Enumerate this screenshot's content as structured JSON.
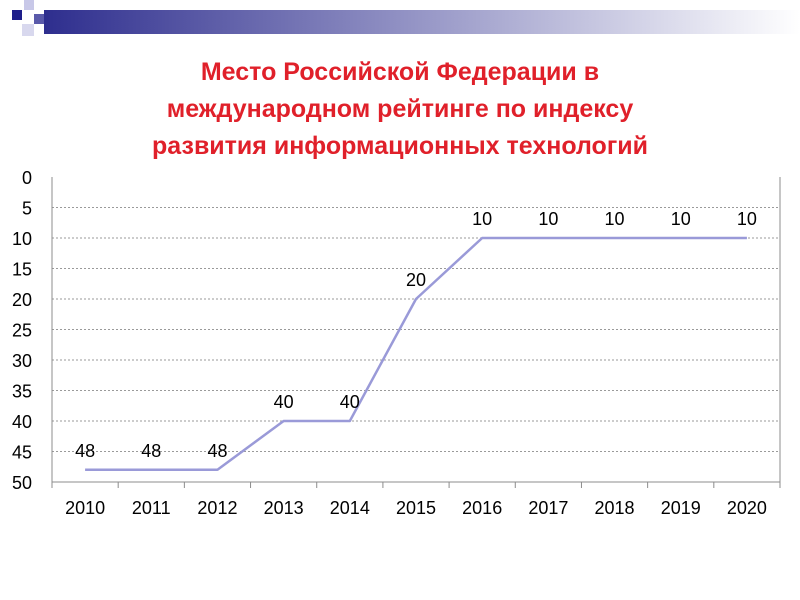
{
  "colors": {
    "title": "#e0202a",
    "line": "#9a9ad8",
    "grid": "#9a9a9a",
    "banner_dark": "#2e2e8e",
    "banner_light": "#ffffff"
  },
  "chart_data": {
    "type": "line",
    "title_lines": [
      "Место Российской Федерации в",
      "международном рейтинге по индексу",
      "развития информационных технологий"
    ],
    "xlabel": "",
    "ylabel": "",
    "x": [
      "2010",
      "2011",
      "2012",
      "2013",
      "2014",
      "2015",
      "2016",
      "2017",
      "2018",
      "2019",
      "2020"
    ],
    "series": [
      {
        "values": [
          48,
          48,
          48,
          40,
          40,
          20,
          10,
          10,
          10,
          10,
          10
        ]
      }
    ],
    "data_labels": [
      "48",
      "48",
      "48",
      "40",
      "40",
      "20",
      "10",
      "10",
      "10",
      "10",
      "10"
    ],
    "y_ticks": [
      "0",
      "5",
      "10",
      "15",
      "20",
      "25",
      "30",
      "35",
      "40",
      "45",
      "50"
    ],
    "ylim": [
      0,
      50
    ],
    "y_inverted": true,
    "grid": "horizontal dashed",
    "legend": "none"
  }
}
